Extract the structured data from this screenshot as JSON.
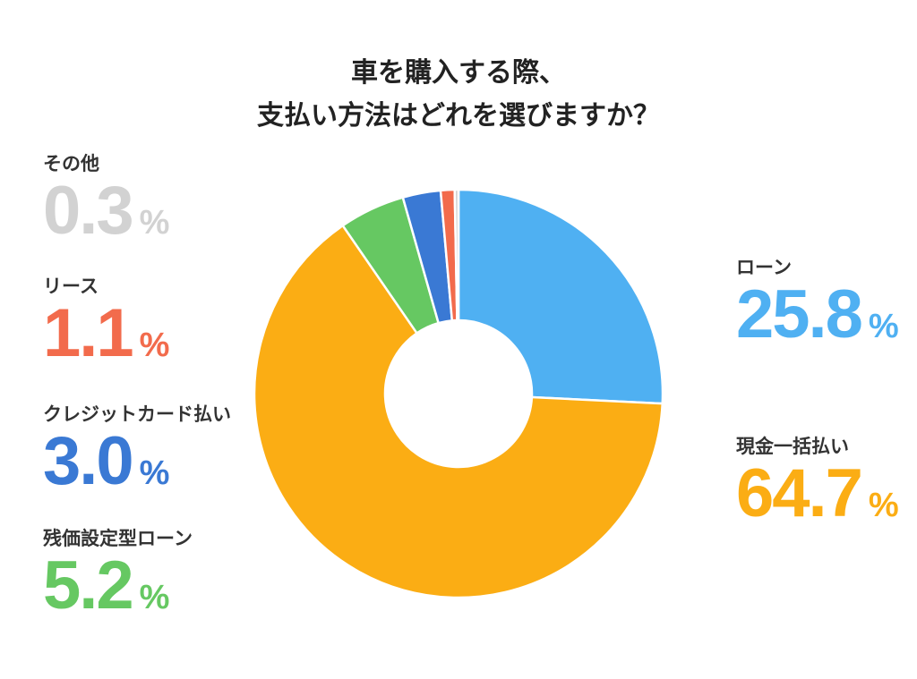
{
  "title_lines": [
    "車を購入する際、",
    "支払い方法はどれを選びますか？"
  ],
  "percent_sign": "%",
  "chart_data": {
    "type": "pie",
    "title": "車を購入する際、支払い方法はどれを選びますか？",
    "unit": "%",
    "donut": true,
    "series": [
      {
        "name": "ローン",
        "value": 25.8,
        "value_label": "25.8",
        "color": "#4fb0f2"
      },
      {
        "name": "現金一括払い",
        "value": 64.7,
        "value_label": "64.7",
        "color": "#fbad14"
      },
      {
        "name": "残価設定型ローン",
        "value": 5.2,
        "value_label": "5.2",
        "color": "#66c862"
      },
      {
        "name": "クレジットカード払い",
        "value": 3.0,
        "value_label": "3.0",
        "color": "#3a79d4"
      },
      {
        "name": "リース",
        "value": 1.1,
        "value_label": "1.1",
        "color": "#f26b4c"
      },
      {
        "name": "その他",
        "value": 0.3,
        "value_label": "0.3",
        "color": "#d2d2d2"
      }
    ]
  }
}
